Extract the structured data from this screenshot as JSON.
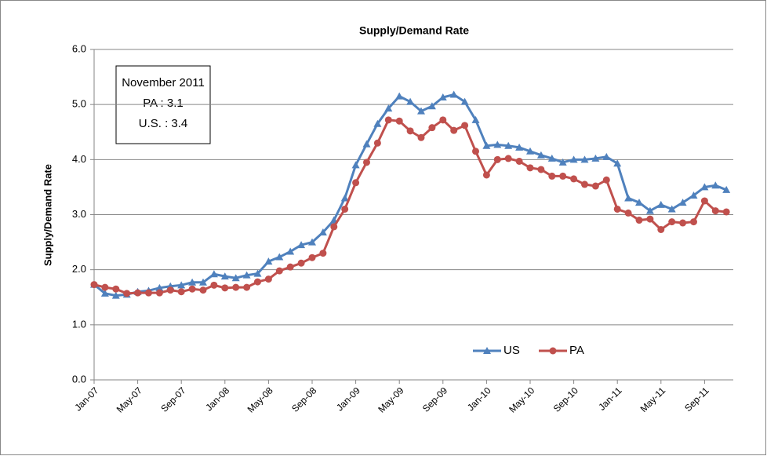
{
  "chart_data": {
    "type": "line",
    "title": "Supply/Demand Rate",
    "y_label": "Supply/Demand Rate",
    "categories": [
      "Jan-07",
      null,
      null,
      null,
      "May-07",
      null,
      null,
      null,
      "Sep-07",
      null,
      null,
      null,
      "Jan-08",
      null,
      null,
      null,
      "May-08",
      null,
      null,
      null,
      "Sep-08",
      null,
      null,
      null,
      "Jan-09",
      null,
      null,
      null,
      "May-09",
      null,
      null,
      null,
      "Sep-09",
      null,
      null,
      null,
      "Jan-10",
      null,
      null,
      null,
      "May-10",
      null,
      null,
      null,
      "Sep-10",
      null,
      null,
      null,
      "Jan-11",
      null,
      null,
      null,
      "May-11",
      null,
      null,
      null,
      "Sep-11",
      null,
      null
    ],
    "series": [
      {
        "name": "US",
        "color": "#4f81bd",
        "marker": "triangle",
        "values": [
          1.73,
          1.57,
          1.53,
          1.55,
          1.6,
          1.62,
          1.67,
          1.7,
          1.72,
          1.77,
          1.77,
          1.92,
          1.88,
          1.85,
          1.9,
          1.93,
          2.15,
          2.23,
          2.33,
          2.45,
          2.5,
          2.68,
          2.9,
          3.3,
          3.9,
          4.28,
          4.65,
          4.93,
          5.15,
          5.05,
          4.88,
          4.97,
          5.13,
          5.18,
          5.05,
          4.72,
          4.25,
          4.27,
          4.25,
          4.22,
          4.15,
          4.08,
          4.02,
          3.95,
          4.0,
          4.0,
          4.02,
          4.05,
          3.93,
          3.3,
          3.22,
          3.07,
          3.18,
          3.1,
          3.22,
          3.35,
          3.5,
          3.53,
          3.45
        ]
      },
      {
        "name": "PA",
        "color": "#c0504d",
        "marker": "circle",
        "values": [
          1.73,
          1.68,
          1.65,
          1.57,
          1.58,
          1.58,
          1.58,
          1.63,
          1.6,
          1.65,
          1.63,
          1.72,
          1.67,
          1.68,
          1.68,
          1.78,
          1.83,
          1.98,
          2.05,
          2.12,
          2.22,
          2.3,
          2.78,
          3.1,
          3.58,
          3.95,
          4.3,
          4.72,
          4.7,
          4.52,
          4.4,
          4.58,
          4.72,
          4.53,
          4.62,
          4.15,
          3.72,
          4.0,
          4.02,
          3.97,
          3.85,
          3.82,
          3.7,
          3.7,
          3.65,
          3.55,
          3.52,
          3.63,
          3.1,
          3.03,
          2.9,
          2.92,
          2.73,
          2.87,
          2.85,
          2.87,
          3.25,
          3.07,
          3.05
        ]
      }
    ],
    "ylim": [
      0,
      6
    ],
    "yticks": [
      {
        "value": 0,
        "label": "0.0"
      },
      {
        "value": 1,
        "label": "1.0"
      },
      {
        "value": 2,
        "label": "2.0"
      },
      {
        "value": 3,
        "label": "3.0"
      },
      {
        "value": 4,
        "label": "4.0"
      },
      {
        "value": 5,
        "label": "5.0"
      },
      {
        "value": 6,
        "label": "6.0"
      }
    ],
    "grid": true,
    "legend": "bottom",
    "annotation": [
      "November 2011",
      "PA : 3.1",
      "U.S. : 3.4"
    ]
  }
}
